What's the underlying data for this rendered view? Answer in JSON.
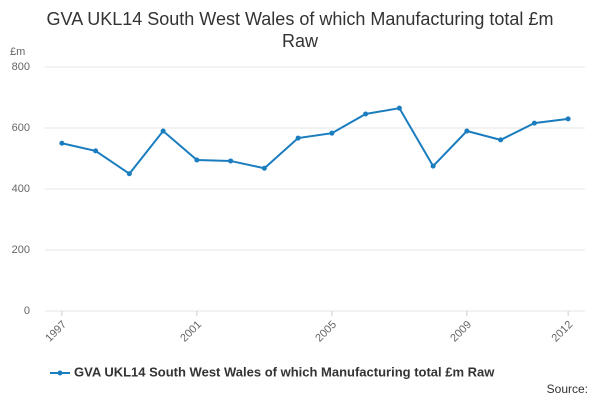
{
  "chart_data": {
    "type": "line",
    "title": "GVA UKL14 South West Wales of which Manufacturing total £m Raw",
    "y_label": "£m",
    "source": "Source:",
    "x": [
      1997,
      1998,
      1999,
      2000,
      2001,
      2002,
      2003,
      2004,
      2005,
      2006,
      2007,
      2008,
      2009,
      2010,
      2011,
      2012
    ],
    "xlim": [
      1996.5,
      2012.5
    ],
    "xticks": [
      1997,
      2001,
      2005,
      2009,
      2012
    ],
    "ylim": [
      0,
      800
    ],
    "yticks": [
      0,
      200,
      400,
      600,
      800
    ],
    "grid": true,
    "legend": "bottom",
    "series": [
      {
        "name": "GVA UKL14 South West Wales of which Manufacturing total £m Raw",
        "color": "#1a7dbf",
        "values": [
          550,
          525,
          450,
          590,
          495,
          492,
          468,
          567,
          583,
          646,
          665,
          475,
          590,
          561,
          616,
          630
        ]
      }
    ]
  }
}
